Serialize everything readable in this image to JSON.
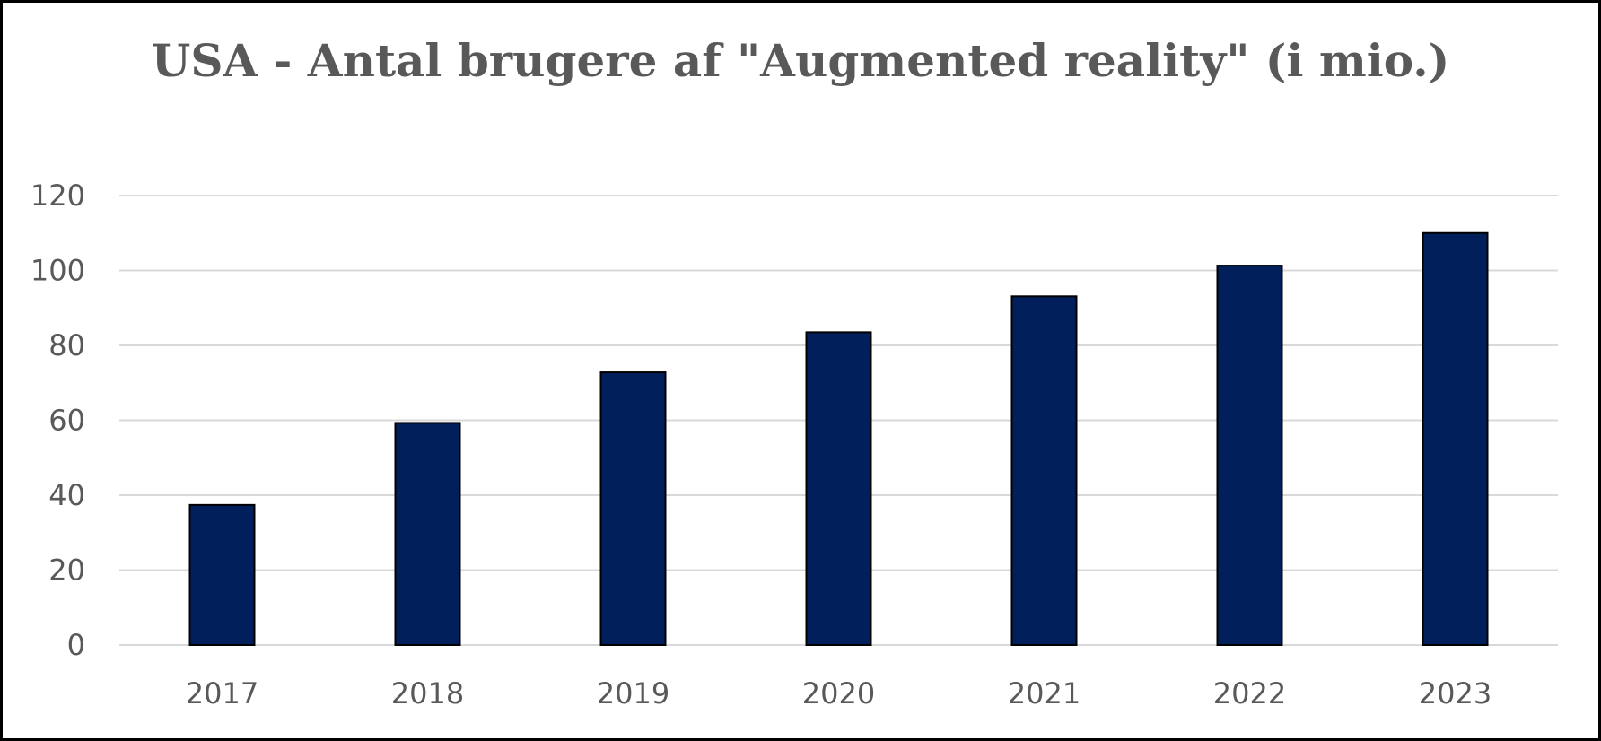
{
  "chart_data": {
    "type": "bar",
    "title": "USA - Antal brugere af \"Augmented reality\" (i mio.)",
    "xlabel": "",
    "ylabel": "",
    "categories": [
      "2017",
      "2018",
      "2019",
      "2020",
      "2021",
      "2022",
      "2023"
    ],
    "values": [
      37.4,
      59.3,
      72.8,
      83.5,
      93.1,
      101.3,
      110.0
    ],
    "ylim": [
      0,
      120
    ],
    "yticks": [
      0,
      20,
      40,
      60,
      80,
      100,
      120
    ],
    "grid": true,
    "legend": "none",
    "colors": {
      "bar_fill": "#001F5B",
      "bar_stroke": "#000000",
      "gridline": "#D9D9D9",
      "text": "#595959"
    }
  }
}
